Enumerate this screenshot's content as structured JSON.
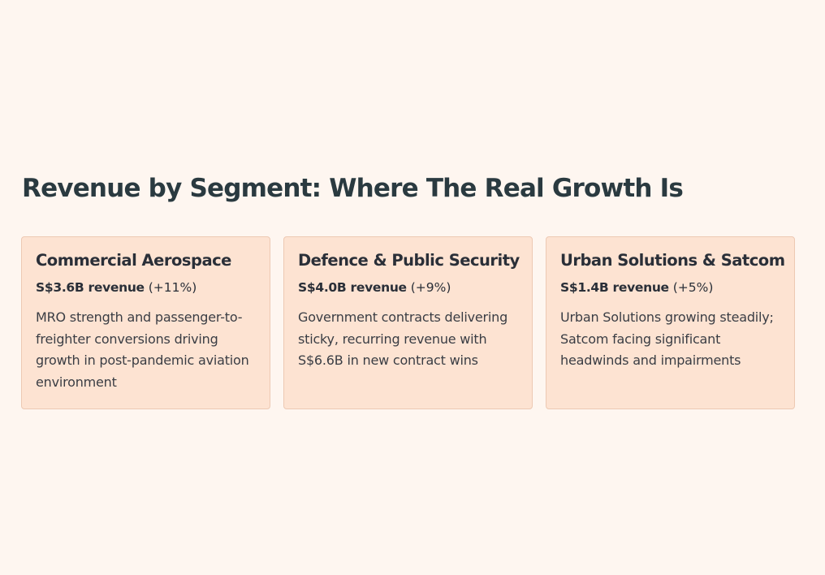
{
  "heading": "Revenue by Segment: Where The Real Growth Is",
  "segments": [
    {
      "title": "Commercial Aerospace",
      "revenue": "S$3.6B revenue",
      "change": "(+11%)",
      "description": "MRO strength and passenger-to-freighter conversions driving growth in post-pandemic aviation environment"
    },
    {
      "title": "Defence & Public Security",
      "revenue": "S$4.0B revenue",
      "change": "(+9%)",
      "description": "Government contracts delivering sticky, recurring revenue with S$6.6B in new contract wins"
    },
    {
      "title": "Urban Solutions & Satcom",
      "revenue": "S$1.4B revenue",
      "change": "(+5%)",
      "description": "Urban Solutions growing steadily; Satcom facing significant headwinds and impairments"
    }
  ],
  "colors": {
    "background": "#fef6f0",
    "card_fill": "#fde3d2",
    "card_border": "#edc9b3",
    "heading": "#2a3a40",
    "text": "#2a2f38"
  }
}
